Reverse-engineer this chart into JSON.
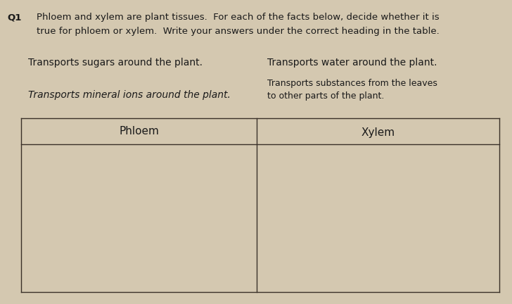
{
  "background_color": "#b8a88a",
  "paper_color": "#d4c8b0",
  "q_number": "Q1",
  "question_line1": "Phloem and xylem are plant tissues.  For each of the facts below, decide whether it is",
  "question_line2": "true for phloem or xylem.  Write your answers under the correct heading in the table.",
  "fact1": "Transports sugars around the plant.",
  "fact2": "Transports water around the plant.",
  "fact3": "Transports mineral ions around the plant.",
  "fact4_line1": "Transports substances from the leaves",
  "fact4_line2": "to other parts of the plant.",
  "col1_header": "Phloem",
  "col2_header": "Xylem",
  "line_color": "#3a3028",
  "text_color": "#1a1a1a",
  "q_fontsize": 9.5,
  "fact_fontsize": 10,
  "header_fontsize": 11
}
